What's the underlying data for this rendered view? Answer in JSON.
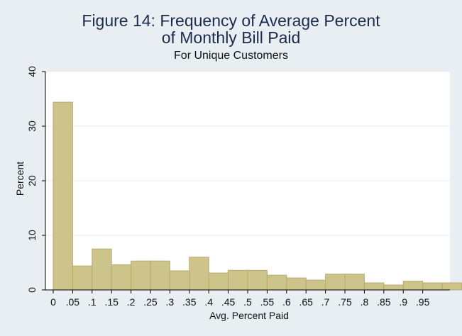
{
  "chart_data": {
    "type": "bar",
    "title": "Figure 14: Frequency of Average Percent of Monthly Bill Paid",
    "title_lines": [
      "Figure 14: Frequency of Average Percent",
      "of Monthly Bill Paid"
    ],
    "subtitle": "For Unique Customers",
    "xlabel": "Avg. Percent Paid",
    "ylabel": "Percent",
    "xlim": [
      -0.02,
      1.02
    ],
    "ylim": [
      0,
      40
    ],
    "bin_width": 0.05,
    "x_ticks": [
      "0",
      ".05",
      ".1",
      ".15",
      ".2",
      ".25",
      ".3",
      ".35",
      ".4",
      ".45",
      ".5",
      ".55",
      ".6",
      ".65",
      ".7",
      ".75",
      ".8",
      ".85",
      ".9",
      ".95"
    ],
    "x_tick_values": [
      0,
      0.05,
      0.1,
      0.15,
      0.2,
      0.25,
      0.3,
      0.35,
      0.4,
      0.45,
      0.5,
      0.55,
      0.6,
      0.65,
      0.7,
      0.75,
      0.8,
      0.85,
      0.9,
      0.95
    ],
    "y_ticks": [
      "0",
      "10",
      "20",
      "30",
      "40"
    ],
    "y_tick_values": [
      0,
      10,
      20,
      30,
      40
    ],
    "bin_starts": [
      0,
      0.05,
      0.1,
      0.15,
      0.2,
      0.25,
      0.3,
      0.35,
      0.4,
      0.45,
      0.5,
      0.55,
      0.6,
      0.65,
      0.7,
      0.75,
      0.8,
      0.85,
      0.9,
      0.95,
      1.0
    ],
    "values": [
      34.4,
      4.4,
      7.5,
      4.6,
      5.3,
      5.3,
      3.5,
      6.0,
      3.1,
      3.6,
      3.6,
      2.7,
      2.2,
      1.8,
      2.9,
      2.9,
      1.3,
      0.9,
      1.6,
      1.3,
      1.3
    ],
    "grid": true,
    "colors": {
      "bar_fill": "#cdc48b",
      "bar_stroke": "#b6ab6e",
      "plot_bg": "#ffffff",
      "page_bg": "#e8eef2",
      "grid": "#e6ecf0"
    }
  }
}
